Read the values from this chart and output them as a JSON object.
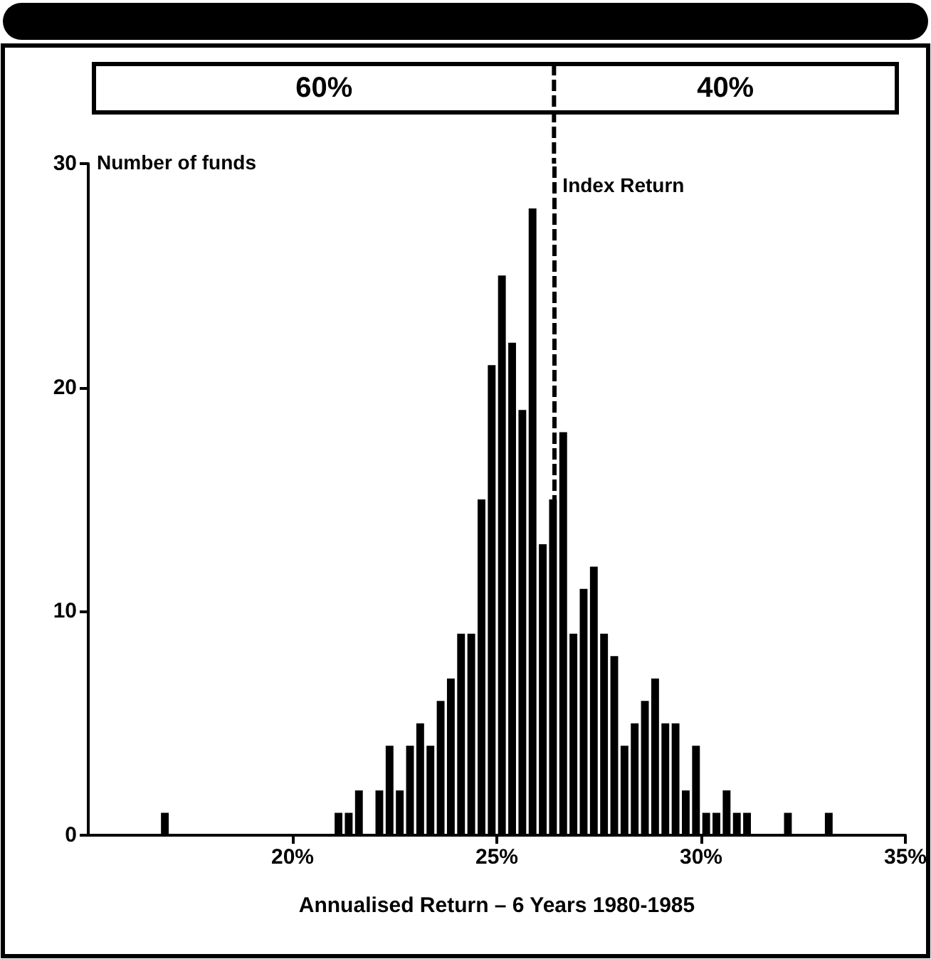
{
  "chart_data": {
    "type": "histogram",
    "xlabel": "Annualised Return – 6 Years 1980-1985",
    "ylabel": "Number of funds",
    "bins": [
      16.75,
      17,
      17.25,
      17.5,
      17.75,
      18,
      18.25,
      18.5,
      18.75,
      19,
      19.25,
      19.5,
      19.75,
      20,
      20.25,
      20.5,
      20.75,
      21,
      21.25,
      21.5,
      21.75,
      22,
      22.25,
      22.5,
      22.75,
      23,
      23.25,
      23.5,
      23.75,
      24,
      24.25,
      24.5,
      24.75,
      25,
      25.25,
      25.5,
      25.75,
      26,
      26.25,
      26.5,
      26.75,
      27,
      27.25,
      27.5,
      27.75,
      28,
      28.25,
      28.5,
      28.75,
      29,
      29.25,
      29.5,
      29.75,
      30,
      30.25,
      30.5,
      30.75,
      31,
      31.25,
      31.5,
      31.75,
      32,
      32.25,
      32.5,
      32.75,
      33,
      33.25
    ],
    "values": [
      1,
      0,
      0,
      0,
      0,
      0,
      0,
      0,
      0,
      0,
      0,
      0,
      0,
      0,
      0,
      0,
      0,
      1,
      1,
      2,
      0,
      2,
      4,
      2,
      4,
      5,
      4,
      6,
      7,
      9,
      9,
      15,
      21,
      25,
      22,
      19,
      28,
      13,
      15,
      18,
      9,
      11,
      12,
      9,
      8,
      4,
      5,
      6,
      7,
      5,
      5,
      2,
      4,
      1,
      1,
      2,
      1,
      1,
      0,
      0,
      0,
      1,
      0,
      0,
      0,
      1
    ],
    "color": "#000000",
    "xlim": [
      15,
      35
    ],
    "xticks": [
      {
        "value": 20,
        "label": "20%"
      },
      {
        "value": 25,
        "label": "25%"
      },
      {
        "value": 30,
        "label": "30%"
      },
      {
        "value": 35,
        "label": "35%"
      }
    ],
    "ylim": [
      0,
      30
    ],
    "yticks": [
      0,
      10,
      20,
      30
    ],
    "ref_lines": [
      {
        "axis": "x",
        "value": 26.4,
        "label": "Index Return",
        "line_style": "dashed",
        "color": "#000000"
      }
    ],
    "annotations": [
      "60%",
      "40%"
    ],
    "grid": false
  }
}
